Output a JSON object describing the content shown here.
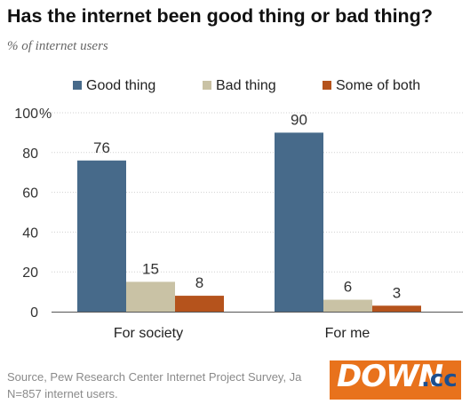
{
  "title": "Has the internet been good thing or bad thing?",
  "subtitle": "% of internet users",
  "chart_data": {
    "type": "bar",
    "categories": [
      "For society",
      "For me"
    ],
    "series": [
      {
        "name": "Good thing",
        "values": [
          76,
          90
        ],
        "color": "#476a8a"
      },
      {
        "name": "Bad thing",
        "values": [
          15,
          6
        ],
        "color": "#c9c2a5"
      },
      {
        "name": "Some of both",
        "values": [
          8,
          3
        ],
        "color": "#b5531c"
      }
    ],
    "data_labels": [
      [
        "76",
        "90"
      ],
      [
        "15",
        "6"
      ],
      [
        "8",
        "3"
      ]
    ],
    "yticks": [
      0,
      20,
      40,
      60,
      80,
      100
    ],
    "ytick_labels": [
      "0",
      "20",
      "40",
      "60",
      "80",
      "100"
    ],
    "y_unit_suffix": "%",
    "ylim": [
      0,
      100
    ],
    "legend_position": "top",
    "grid": true,
    "grid_color": "#d0d0d0",
    "axis_color": "#555555"
  },
  "source": {
    "line1": "Source, Pew Research Center Internet Project Survey, Ja",
    "line2": "N=857 internet users."
  },
  "watermark": {
    "part1": "DOWN",
    "part2": ".cc",
    "box_color": "#e8721c",
    "text_color": "#ffffff",
    "cc_color": "#1d4f8f"
  }
}
